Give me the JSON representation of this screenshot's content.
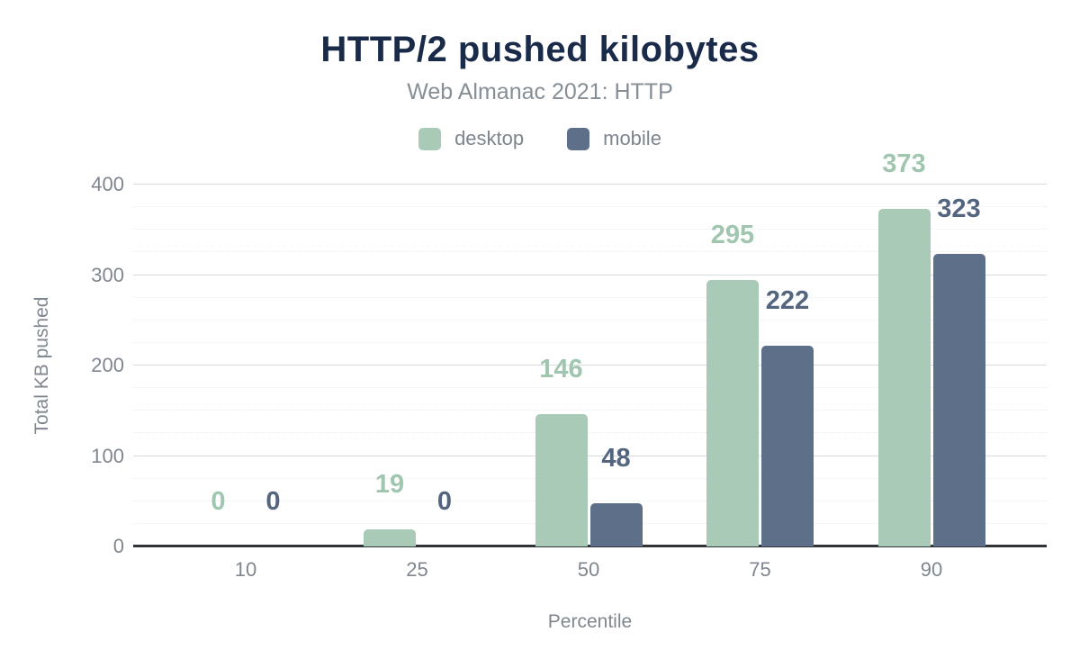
{
  "title": "HTTP/2 pushed kilobytes",
  "subtitle": "Web Almanac 2021: HTTP",
  "legend": {
    "items": [
      {
        "label": "desktop",
        "color": "#a8cab6"
      },
      {
        "label": "mobile",
        "color": "#5e7089"
      }
    ]
  },
  "chart_data": {
    "type": "bar",
    "title": "HTTP/2 pushed kilobytes",
    "subtitle": "Web Almanac 2021: HTTP",
    "categories": [
      "10",
      "25",
      "50",
      "75",
      "90"
    ],
    "series": [
      {
        "name": "desktop",
        "color": "#a8cab6",
        "label_color": "#a0c6b0",
        "values": [
          0,
          19,
          146,
          295,
          373
        ]
      },
      {
        "name": "mobile",
        "color": "#5e7089",
        "label_color": "#53657f",
        "values": [
          0,
          0,
          48,
          222,
          323
        ]
      }
    ],
    "xlabel": "Percentile",
    "ylabel": "Total KB pushed",
    "ylim": [
      0,
      400
    ],
    "yticks": [
      0,
      100,
      200,
      300,
      400
    ],
    "minor_tick_step": 25,
    "grid": true,
    "legend_position": "top",
    "value_labels": true
  },
  "colors": {
    "title": "#1a2b49",
    "muted_text": "#80868f",
    "axis_line": "#303438",
    "major_grid": "#d8dbde",
    "minor_grid": "#e9ebed",
    "background": "#ffffff"
  }
}
